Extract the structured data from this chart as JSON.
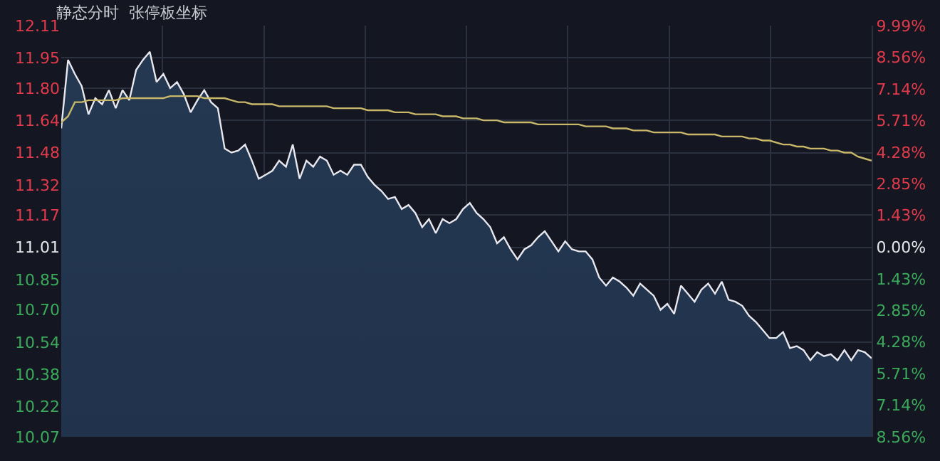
{
  "chart_data": {
    "type": "area",
    "title": "静态分时  张停板坐标",
    "categories": [
      null,
      null,
      null,
      null,
      null,
      null,
      null,
      null,
      null,
      null,
      null,
      null,
      null,
      null,
      null,
      null,
      null,
      null,
      null,
      null,
      null,
      null,
      null,
      null,
      null,
      null,
      null,
      null,
      null,
      null,
      null,
      null,
      null,
      null,
      null,
      null,
      null,
      null,
      null,
      null,
      null,
      null,
      null,
      null,
      null,
      null,
      null,
      null,
      null,
      null,
      null,
      null,
      null,
      null,
      null,
      null,
      null,
      null,
      null,
      null,
      null,
      null,
      null,
      null,
      null,
      null,
      null,
      null,
      null,
      null,
      null,
      null,
      null,
      null,
      null,
      null,
      null,
      null,
      null,
      null,
      null,
      null,
      null,
      null,
      null,
      null,
      null,
      null,
      null,
      null,
      null,
      null,
      null,
      null,
      null,
      null,
      null,
      null,
      null,
      null,
      null,
      null,
      null,
      null,
      null,
      null,
      null,
      null,
      null,
      null,
      null,
      null,
      null,
      null,
      null,
      null,
      null,
      null,
      null,
      null
    ],
    "series": [
      {
        "color": "#e8e8ee",
        "values": [
          11.6,
          11.94,
          11.87,
          11.81,
          11.67,
          11.75,
          11.72,
          11.79,
          11.7,
          11.79,
          11.74,
          11.89,
          11.94,
          11.98,
          11.83,
          11.87,
          11.8,
          11.83,
          11.77,
          11.68,
          11.74,
          11.79,
          11.73,
          11.7,
          11.5,
          11.48,
          11.49,
          11.52,
          11.44,
          11.35,
          11.37,
          11.39,
          11.44,
          11.41,
          11.52,
          11.35,
          11.44,
          11.41,
          11.46,
          11.44,
          11.37,
          11.39,
          11.37,
          11.42,
          11.42,
          11.36,
          11.32,
          11.29,
          11.25,
          11.26,
          11.2,
          11.22,
          11.18,
          11.11,
          11.15,
          11.08,
          11.15,
          11.13,
          11.15,
          11.2,
          11.23,
          11.18,
          11.15,
          11.11,
          11.03,
          11.06,
          11.0,
          10.95,
          11.0,
          11.02,
          11.06,
          11.09,
          11.04,
          10.99,
          11.04,
          11.0,
          10.99,
          10.99,
          10.95,
          10.86,
          10.82,
          10.86,
          10.84,
          10.81,
          10.77,
          10.83,
          10.8,
          10.77,
          10.7,
          10.73,
          10.68,
          10.82,
          10.78,
          10.74,
          10.8,
          10.83,
          10.78,
          10.84,
          10.75,
          10.74,
          10.72,
          10.67,
          10.64,
          10.6,
          10.56,
          10.56,
          10.59,
          10.51,
          10.52,
          10.5,
          10.45,
          10.49,
          10.47,
          10.48,
          10.45,
          10.5,
          10.45,
          10.5,
          10.49,
          10.46
        ]
      },
      {
        "type": "line",
        "color": "#c9b86a",
        "values": [
          11.63,
          11.66,
          11.73,
          11.73,
          11.74,
          11.74,
          11.74,
          11.74,
          11.74,
          11.75,
          11.75,
          11.75,
          11.75,
          11.75,
          11.75,
          11.75,
          11.76,
          11.76,
          11.76,
          11.76,
          11.76,
          11.75,
          11.75,
          11.75,
          11.75,
          11.74,
          11.73,
          11.73,
          11.72,
          11.72,
          11.72,
          11.72,
          11.71,
          11.71,
          11.71,
          11.71,
          11.71,
          11.71,
          11.71,
          11.71,
          11.7,
          11.7,
          11.7,
          11.7,
          11.7,
          11.69,
          11.69,
          11.69,
          11.69,
          11.68,
          11.68,
          11.68,
          11.67,
          11.67,
          11.67,
          11.67,
          11.66,
          11.66,
          11.66,
          11.65,
          11.65,
          11.65,
          11.64,
          11.64,
          11.64,
          11.63,
          11.63,
          11.63,
          11.63,
          11.63,
          11.62,
          11.62,
          11.62,
          11.62,
          11.62,
          11.62,
          11.62,
          11.61,
          11.61,
          11.61,
          11.61,
          11.6,
          11.6,
          11.6,
          11.59,
          11.59,
          11.59,
          11.58,
          11.58,
          11.58,
          11.58,
          11.58,
          11.57,
          11.57,
          11.57,
          11.57,
          11.57,
          11.56,
          11.56,
          11.56,
          11.56,
          11.55,
          11.55,
          11.54,
          11.54,
          11.53,
          11.52,
          11.52,
          11.51,
          11.51,
          11.5,
          11.5,
          11.5,
          11.49,
          11.49,
          11.48,
          11.48,
          11.46,
          11.45,
          11.44
        ]
      }
    ],
    "ylim": [
      10.07,
      12.11
    ],
    "yticks": [
      10.07,
      10.22,
      10.38,
      10.54,
      {
        "value": 10.7,
        "label": "10.70"
      },
      10.85,
      11.01,
      11.17,
      11.32,
      11.48,
      11.64,
      {
        "value": 11.8,
        "label": "11.80"
      },
      11.95,
      12.11
    ],
    "y2lim": [
      -8.56,
      9.99
    ],
    "y2ticks": [
      {
        "value": -8.56,
        "label": "8.56%"
      },
      {
        "value": -7.14,
        "label": "7.14%"
      },
      {
        "value": -5.71,
        "label": "5.71%"
      },
      {
        "value": -4.28,
        "label": "4.28%"
      },
      {
        "value": -2.85,
        "label": "2.85%"
      },
      {
        "value": -1.43,
        "label": "1.43%"
      },
      {
        "value": 0,
        "label": "0.00%"
      },
      {
        "value": 1.43,
        "label": "1.43%"
      },
      {
        "value": 2.85,
        "label": "2.85%"
      },
      {
        "value": 4.28,
        "label": "4.28%"
      },
      {
        "value": 5.71,
        "label": "5.71%"
      },
      {
        "value": 7.14,
        "label": "7.14%"
      },
      {
        "value": 8.56,
        "label": "8.56%"
      },
      {
        "value": 9.99,
        "label": "9.99%"
      }
    ],
    "tick_labels": "y",
    "grid": true
  }
}
